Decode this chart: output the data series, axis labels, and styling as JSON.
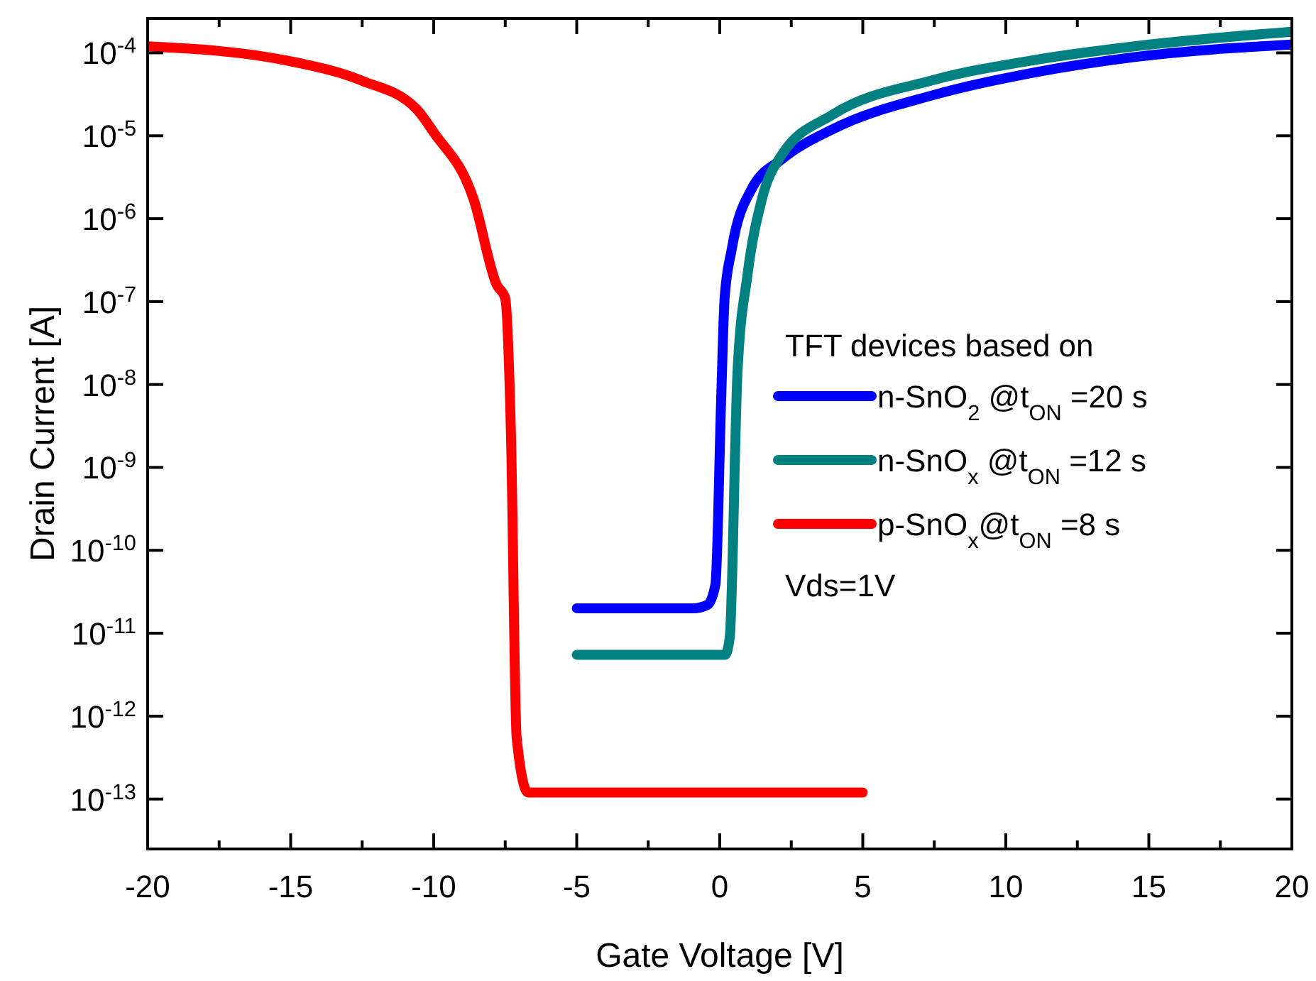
{
  "chart_data": {
    "type": "line",
    "xlabel": "Gate Voltage [V]",
    "ylabel": "Drain Current [A]",
    "legend_title": "TFT devices based on",
    "legend": "right",
    "log": "y",
    "grid": false,
    "marker": "none",
    "line_style": "solid",
    "xlim": [
      -20,
      20
    ],
    "ylim": [
      2.5e-14,
      0.00026
    ],
    "xticks": [
      -20,
      {
        "value": -17.5,
        "label": null
      },
      -15,
      {
        "value": -12.5,
        "label": null
      },
      -10,
      {
        "value": -7.5,
        "label": null
      },
      -5,
      {
        "value": -2.5,
        "label": null
      },
      0,
      {
        "value": 2.5,
        "label": null
      },
      5,
      {
        "value": 7.5,
        "label": null
      },
      10,
      {
        "value": 12.5,
        "label": null
      },
      15,
      {
        "value": 17.5,
        "label": null
      },
      20
    ],
    "yticks": [
      {
        "value": 1e-13,
        "label": "10$^{-13}$"
      },
      {
        "value": 1e-12,
        "label": "10$^{-12}$"
      },
      {
        "value": 1e-11,
        "label": "10$^{-11}$"
      },
      {
        "value": 1e-10,
        "label": "10$^{-10}$"
      },
      {
        "value": 1e-09,
        "label": "10$^{-9}$"
      },
      {
        "value": 1e-08,
        "label": "10$^{-8}$"
      },
      {
        "value": 1e-07,
        "label": "10$^{-7}$"
      },
      {
        "value": 1e-06,
        "label": "10$^{-6}$"
      },
      {
        "value": 1e-05,
        "label": "10$^{-5}$"
      },
      {
        "value": 0.0001,
        "label": "10$^{-4}$"
      }
    ],
    "annotations": [
      "Vds=1V"
    ],
    "series": [
      {
        "name": "n-SnO$_{2}$ @t$_{ON}$ =20 s",
        "color": "#0000ff",
        "x": [
          -5,
          -0.93,
          -0.43,
          -0.15,
          0.05,
          0.17,
          0.42,
          1.12,
          2.17,
          3.95,
          7.47,
          11.0,
          14.5,
          20
        ],
        "values": [
          2e-11,
          2e-11,
          2.2e-11,
          3.9e-11,
          6.8e-09,
          1.1e-07,
          4.3e-07,
          2.3e-06,
          5.2e-06,
          1.2e-05,
          3.1e-05,
          5.8e-05,
          8.9e-05,
          0.000126
        ]
      },
      {
        "name": "n-SnO$_{x}$ @t$_{ON}$ =12 s",
        "color": "#008080",
        "x": [
          -5,
          0.19,
          0.35,
          0.62,
          0.97,
          1.47,
          2.17,
          3.95,
          7.47,
          11.0,
          14.5,
          20
        ],
        "values": [
          5.5e-12,
          5.5e-12,
          9e-12,
          1.4e-08,
          2.1e-07,
          1.7e-06,
          5.9e-06,
          1.8e-05,
          4.7e-05,
          8.2e-05,
          0.00012,
          0.00018
        ]
      },
      {
        "name": "p-SnO$_{x}$@t$_{ON}$ =8 s",
        "color": "#ff0000",
        "x": [
          -20,
          -15,
          -12.5,
          -10.6,
          -10,
          -8.6,
          -7.8,
          -7.5,
          -7.3,
          -7.1,
          -6.7,
          5
        ],
        "values": [
          0.00012,
          7.9e-05,
          4.6e-05,
          2.1e-05,
          1.1e-05,
          1.7e-06,
          1.6e-07,
          1.1e-07,
          2.6e-09,
          5.5e-13,
          1.2e-13,
          1.2e-13
        ]
      }
    ]
  }
}
